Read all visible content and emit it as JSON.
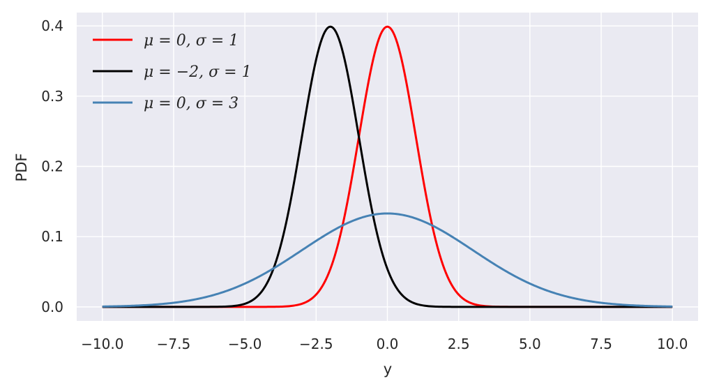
{
  "chart_data": {
    "type": "line",
    "title": "",
    "xlabel": "y",
    "ylabel": "PDF",
    "xlim": [
      -10.9,
      10.9
    ],
    "ylim": [
      -0.02,
      0.419
    ],
    "x_range": [
      -10,
      10
    ],
    "xticks": [
      -10.0,
      -7.5,
      -5.0,
      -2.5,
      0.0,
      2.5,
      5.0,
      7.5,
      10.0
    ],
    "xtick_labels": [
      "−10.0",
      "−7.5",
      "−5.0",
      "−2.5",
      "0.0",
      "2.5",
      "5.0",
      "7.5",
      "10.0"
    ],
    "yticks": [
      0.0,
      0.1,
      0.2,
      0.3,
      0.4
    ],
    "ytick_labels": [
      "0.0",
      "0.1",
      "0.2",
      "0.3",
      "0.4"
    ],
    "grid": true,
    "legend_position": "upper-left",
    "colors": {
      "background": "#eaeaf2",
      "grid": "#ffffff"
    },
    "series": [
      {
        "name": "μ = 0, σ = 1",
        "mu": 0,
        "sigma": 1,
        "color": "#ff0000"
      },
      {
        "name": "μ = −2, σ = 1",
        "mu": -2,
        "sigma": 1,
        "color": "#000000"
      },
      {
        "name": "μ = 0, σ = 3",
        "mu": 0,
        "sigma": 3,
        "color": "#4682b4"
      }
    ]
  }
}
